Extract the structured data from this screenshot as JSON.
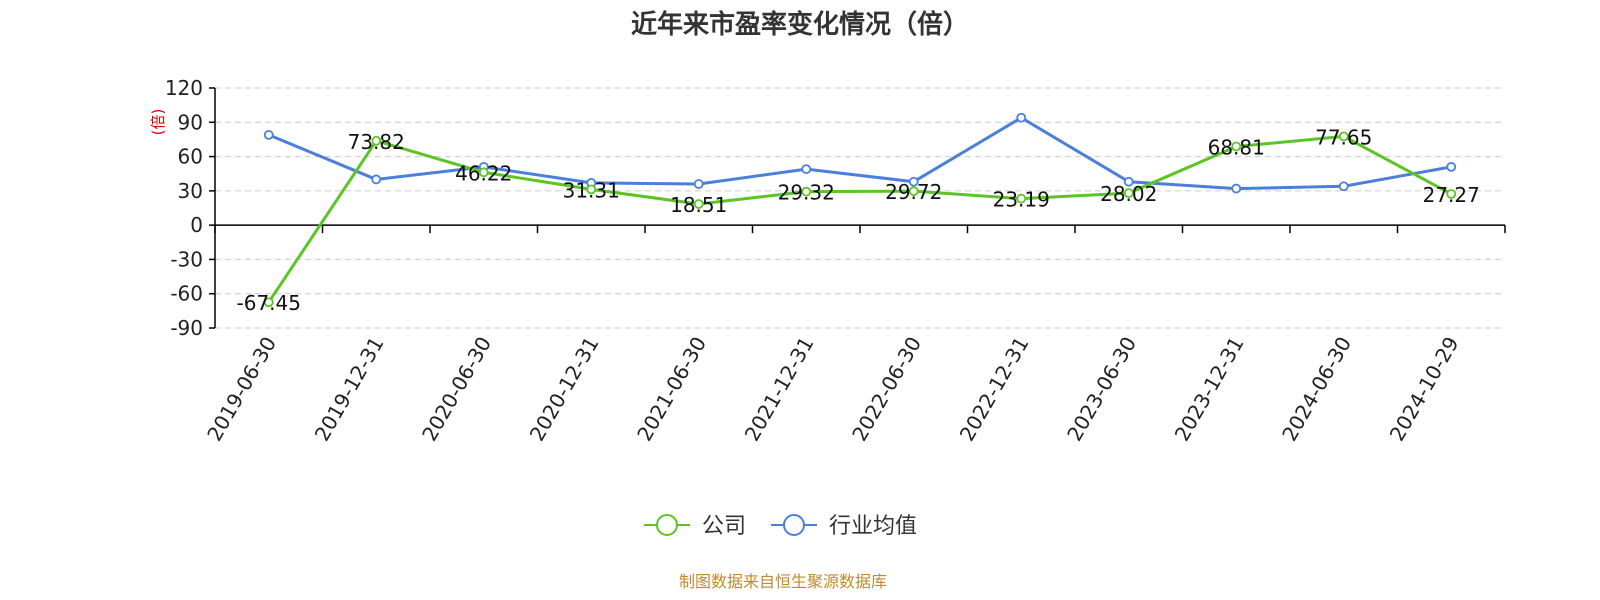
{
  "chart_data": {
    "type": "line",
    "title": "近年来市盈率变化情况（倍）",
    "ylabel": "(倍)",
    "xlabel": "",
    "categories": [
      "2019-06-30",
      "2019-12-31",
      "2020-06-30",
      "2020-12-31",
      "2021-06-30",
      "2021-12-31",
      "2022-06-30",
      "2022-12-31",
      "2023-06-30",
      "2023-12-31",
      "2024-06-30",
      "2024-10-29"
    ],
    "yticks": [
      "120",
      "90",
      "60",
      "30",
      "0",
      "-30",
      "-60",
      "-90"
    ],
    "ylim": [
      -90,
      120
    ],
    "grid": true,
    "legend_position": "bottom",
    "series": [
      {
        "name": "公司",
        "color": "#5cc424",
        "values": [
          -67.45,
          73.82,
          46.22,
          31.31,
          18.51,
          29.32,
          29.72,
          23.19,
          28.02,
          68.81,
          77.65,
          27.27
        ],
        "labels": [
          "-67.45",
          "73.82",
          "46.22",
          "31.31",
          "18.51",
          "29.32",
          "29.72",
          "23.19",
          "28.02",
          "68.81",
          "77.65",
          "27.27"
        ]
      },
      {
        "name": "行业均值",
        "color": "#4a7fdc",
        "values": [
          79,
          40,
          51,
          37,
          36,
          49,
          38,
          94,
          38,
          32,
          34,
          51
        ]
      }
    ]
  },
  "source": "制图数据来自恒生聚源数据库"
}
